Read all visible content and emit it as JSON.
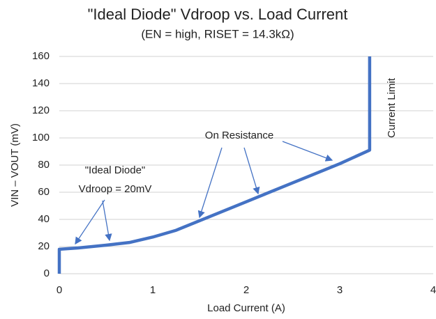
{
  "chart_data": {
    "type": "line",
    "title": "\"Ideal Diode\" Vdroop vs. Load Current",
    "subtitle": "(EN = high, RISET = 14.3kΩ)",
    "x_label": "Load Current (A)",
    "y_label": "VIN – VOUT (mV)",
    "x": [
      0,
      0,
      0.2,
      0.5,
      0.75,
      1,
      1.25,
      1.5,
      2,
      2.5,
      3,
      3.32,
      3.32
    ],
    "series": [
      {
        "name": "Vdroop",
        "color": "#4472c4",
        "values": [
          0,
          18,
          19,
          21,
          23,
          27,
          32,
          39,
          53,
          67,
          81,
          91,
          160
        ]
      }
    ],
    "xlim": [
      0,
      4
    ],
    "xticks": [
      0,
      1,
      2,
      3,
      4
    ],
    "ylim": [
      0,
      160
    ],
    "yticks": [
      0,
      20,
      40,
      60,
      80,
      100,
      120,
      140,
      160
    ],
    "grid": true,
    "annotations": [
      "Current Limit",
      "On Resistance",
      "\"Ideal Diode\"",
      "Vdroop = 20mV"
    ]
  }
}
